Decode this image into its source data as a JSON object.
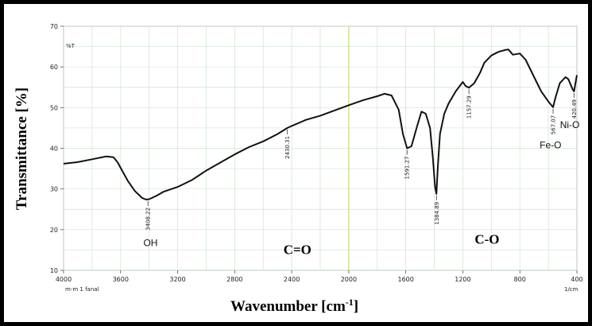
{
  "chart_data": {
    "type": "line",
    "xlabel": "Wavenumber [cm",
    "xlabel_sup": "-1",
    "xlabel_end": "]",
    "ylabel": "Transmittance [%]",
    "y_unit": "%T",
    "x_footer_left": "m-m 1 fanal",
    "x_footer_right": "1/cm",
    "xlim": [
      4000,
      400
    ],
    "ylim": [
      10,
      70
    ],
    "x_ticks": [
      "4000",
      "3600",
      "3200",
      "2800",
      "2400",
      "2000",
      "1600",
      "1200",
      "800",
      "400"
    ],
    "x_tick_values": [
      4000,
      3600,
      3200,
      2800,
      2400,
      2000,
      1600,
      1200,
      800,
      400
    ],
    "y_ticks": [
      "10",
      "20",
      "30",
      "40",
      "50",
      "60",
      "70"
    ],
    "y_tick_values": [
      10,
      20,
      30,
      40,
      50,
      60,
      70
    ],
    "grid": true,
    "reference_line": 2000,
    "line_color": "#111111",
    "grid_color": "#cfe3cf",
    "reference_color": "#c8e07a",
    "series": [
      {
        "x": [
          4000,
          3900,
          3800,
          3700,
          3650,
          3620,
          3600,
          3550,
          3500,
          3450,
          3420,
          3400,
          3350,
          3300,
          3200,
          3100,
          3000,
          2900,
          2800,
          2700,
          2600,
          2500,
          2430,
          2400,
          2300,
          2200,
          2100,
          2000,
          1900,
          1800,
          1750,
          1700,
          1650,
          1620,
          1591,
          1560,
          1520,
          1490,
          1460,
          1430,
          1410,
          1395,
          1385,
          1375,
          1360,
          1330,
          1300,
          1250,
          1200,
          1180,
          1157,
          1120,
          1080,
          1050,
          1000,
          950,
          900,
          880,
          850,
          800,
          760,
          700,
          650,
          600,
          570,
          567,
          550,
          520,
          480,
          460,
          430,
          420,
          400
        ],
        "y": [
          36.2,
          36.6,
          37.3,
          38.0,
          37.8,
          36.5,
          35.2,
          32.0,
          29.5,
          27.8,
          27.4,
          27.5,
          28.3,
          29.3,
          30.5,
          32.2,
          34.5,
          36.5,
          38.5,
          40.3,
          41.7,
          43.5,
          45.0,
          45.5,
          47.0,
          48.0,
          49.3,
          50.6,
          51.8,
          52.8,
          53.4,
          53.0,
          49.5,
          43.5,
          40.0,
          40.5,
          45.5,
          49.0,
          48.5,
          45.0,
          37.5,
          30.5,
          28.8,
          35.5,
          43.5,
          48.5,
          51.0,
          54.0,
          56.3,
          55.3,
          54.9,
          56.0,
          58.5,
          61.0,
          62.8,
          63.7,
          64.2,
          64.3,
          63.0,
          63.3,
          61.8,
          57.5,
          54.0,
          51.5,
          50.2,
          50.1,
          52.5,
          56.0,
          57.5,
          57.0,
          54.5,
          54.0,
          58.0
        ]
      }
    ],
    "peaks": [
      {
        "x": 3408.22,
        "y": 27.4,
        "label": "3408.22"
      },
      {
        "x": 2430.31,
        "y": 45.0,
        "label": "2430.31"
      },
      {
        "x": 1591.27,
        "y": 40.0,
        "label": "1591.27"
      },
      {
        "x": 1384.89,
        "y": 28.8,
        "label": "1384.89"
      },
      {
        "x": 1157.29,
        "y": 54.9,
        "label": "1157.29"
      },
      {
        "x": 567.07,
        "y": 50.1,
        "label": "567.07"
      },
      {
        "x": 420.49,
        "y": 54.0,
        "label": "420.49"
      }
    ],
    "annotations": [
      {
        "text": "OH",
        "x": 3390,
        "y": 16.0
      },
      {
        "text": "Fe-O",
        "x": 585,
        "y": 40.0
      },
      {
        "text": "Ni-O",
        "x": 450,
        "y": 45.0
      }
    ],
    "regions": [
      {
        "text": "C=O",
        "x": 2360,
        "y": 14.0
      },
      {
        "text": "C-O",
        "x": 1030,
        "y": 16.5
      }
    ]
  }
}
